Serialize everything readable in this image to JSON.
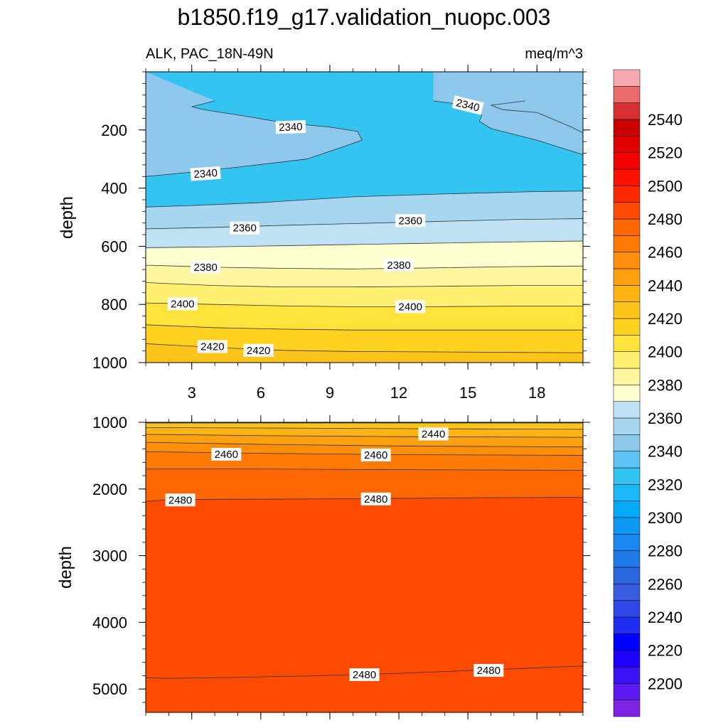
{
  "chart_data": {
    "type": "heatmap",
    "title": "b1850.f19_g17.validation_nuopc.003",
    "subtitle_left": "ALK, PAC_18N-49N",
    "subtitle_right": "meq/m^3",
    "panels": [
      {
        "name": "upper",
        "ylabel": "depth",
        "ylim": [
          1000,
          0
        ],
        "yticks": [
          200,
          400,
          600,
          800,
          1000
        ],
        "xlim": [
          1,
          20
        ],
        "xticks": [
          3,
          6,
          9,
          12,
          15,
          18
        ],
        "contour_levels": [
          2330,
          2340,
          2350,
          2360,
          2370,
          2380,
          2390,
          2400,
          2410,
          2420
        ],
        "isolines": [
          {
            "level": 2340,
            "points": [
              [
                1,
                360
              ],
              [
                3,
                345
              ],
              [
                5,
                328
              ],
              [
                8,
                300
              ],
              [
                9.5,
                260
              ],
              [
                10.4,
                235
              ],
              [
                10.2,
                205
              ],
              [
                9,
                190
              ],
              [
                7,
                175
              ],
              [
                5.5,
                155
              ],
              [
                3.5,
                130
              ],
              [
                3,
                120
              ],
              [
                4,
                100
              ]
            ]
          },
          {
            "level": 2340,
            "points": [
              [
                13.5,
                100
              ],
              [
                15,
                115
              ],
              [
                15.3,
                120
              ],
              [
                15.6,
                150
              ],
              [
                15.5,
                170
              ],
              [
                16,
                195
              ],
              [
                18,
                235
              ],
              [
                20,
                285
              ]
            ]
          },
          {
            "level": 2340,
            "points": [
              [
                20,
                210
              ],
              [
                19.5,
                190
              ],
              [
                18,
                140
              ],
              [
                16.5,
                130
              ],
              [
                16,
                115
              ],
              [
                17.5,
                100
              ]
            ]
          },
          {
            "level": 2350,
            "points": [
              [
                1,
                465
              ],
              [
                3,
                460
              ],
              [
                6,
                450
              ],
              [
                10,
                430
              ],
              [
                14,
                420
              ],
              [
                18,
                412
              ],
              [
                20,
                410
              ]
            ]
          },
          {
            "level": 2360,
            "points": [
              [
                1,
                540
              ],
              [
                4,
                535
              ],
              [
                7,
                528
              ],
              [
                10,
                522
              ],
              [
                13,
                516
              ],
              [
                17,
                508
              ],
              [
                20,
                505
              ]
            ]
          },
          {
            "level": 2370,
            "points": [
              [
                1,
                605
              ],
              [
                4,
                602
              ],
              [
                7,
                598
              ],
              [
                10,
                594
              ],
              [
                13,
                590
              ],
              [
                17,
                585
              ],
              [
                20,
                582
              ]
            ]
          },
          {
            "level": 2380,
            "points": [
              [
                1,
                665
              ],
              [
                4,
                672
              ],
              [
                7,
                676
              ],
              [
                10,
                678
              ],
              [
                13,
                675
              ],
              [
                17,
                670
              ],
              [
                20,
                668
              ]
            ]
          },
          {
            "level": 2390,
            "points": [
              [
                1,
                725
              ],
              [
                4,
                735
              ],
              [
                7,
                740
              ],
              [
                10,
                740
              ],
              [
                13,
                738
              ],
              [
                17,
                735
              ],
              [
                20,
                735
              ]
            ]
          },
          {
            "level": 2400,
            "points": [
              [
                1,
                795
              ],
              [
                4,
                800
              ],
              [
                7,
                805
              ],
              [
                10,
                808
              ],
              [
                13,
                808
              ],
              [
                17,
                806
              ],
              [
                20,
                806
              ]
            ]
          },
          {
            "level": 2410,
            "points": [
              [
                1,
                870
              ],
              [
                4,
                880
              ],
              [
                7,
                885
              ],
              [
                10,
                888
              ],
              [
                13,
                888
              ],
              [
                17,
                888
              ],
              [
                20,
                888
              ]
            ]
          },
          {
            "level": 2420,
            "points": [
              [
                1,
                935
              ],
              [
                4,
                948
              ],
              [
                7,
                958
              ],
              [
                10,
                962
              ],
              [
                13,
                963
              ],
              [
                17,
                965
              ],
              [
                20,
                966
              ]
            ]
          }
        ],
        "labels": [
          {
            "text": "2340",
            "x": 15.0,
            "y": 115,
            "rotate": 14
          },
          {
            "text": "2340",
            "x": 7.3,
            "y": 190,
            "rotate": -2
          },
          {
            "text": "2340",
            "x": 3.6,
            "y": 350,
            "rotate": -4
          },
          {
            "text": "2360",
            "x": 5.3,
            "y": 537,
            "rotate": 0
          },
          {
            "text": "2360",
            "x": 12.5,
            "y": 512,
            "rotate": 0
          },
          {
            "text": "2380",
            "x": 3.6,
            "y": 672,
            "rotate": 0
          },
          {
            "text": "2380",
            "x": 12.0,
            "y": 665,
            "rotate": 0
          },
          {
            "text": "2400",
            "x": 2.6,
            "y": 798,
            "rotate": 0
          },
          {
            "text": "2400",
            "x": 12.5,
            "y": 808,
            "rotate": 0
          },
          {
            "text": "2420",
            "x": 3.9,
            "y": 945,
            "rotate": 0
          },
          {
            "text": "2420",
            "x": 5.9,
            "y": 958,
            "rotate": 0
          }
        ]
      },
      {
        "name": "lower",
        "ylabel": "depth",
        "ylim": [
          5350,
          1000
        ],
        "yticks": [
          1000,
          2000,
          3000,
          4000,
          5000
        ],
        "xlim": [
          1,
          20
        ],
        "xticks": [
          3,
          6,
          9,
          12,
          15,
          18
        ],
        "contour_levels": [
          2420,
          2430,
          2440,
          2450,
          2460,
          2470,
          2480
        ],
        "isolines": [
          {
            "level": 2420,
            "points": [
              [
                1,
                1010
              ],
              [
                20,
                1010
              ]
            ]
          },
          {
            "level": 2430,
            "points": [
              [
                1,
                1080
              ],
              [
                6,
                1085
              ],
              [
                12,
                1095
              ],
              [
                20,
                1105
              ]
            ]
          },
          {
            "level": 2440,
            "points": [
              [
                1,
                1180
              ],
              [
                6,
                1200
              ],
              [
                12,
                1215
              ],
              [
                20,
                1225
              ]
            ]
          },
          {
            "level": 2450,
            "points": [
              [
                1,
                1300
              ],
              [
                6,
                1330
              ],
              [
                12,
                1355
              ],
              [
                20,
                1370
              ]
            ]
          },
          {
            "level": 2460,
            "points": [
              [
                1,
                1440
              ],
              [
                6,
                1465
              ],
              [
                12,
                1485
              ],
              [
                20,
                1495
              ]
            ]
          },
          {
            "level": 2470,
            "points": [
              [
                1,
                1700
              ],
              [
                6,
                1700
              ],
              [
                12,
                1710
              ],
              [
                20,
                1720
              ]
            ]
          },
          {
            "level": 2480,
            "points": [
              [
                1,
                2185
              ],
              [
                2,
                2160
              ],
              [
                4,
                2155
              ],
              [
                8,
                2150
              ],
              [
                12,
                2140
              ],
              [
                16,
                2130
              ],
              [
                20,
                2125
              ]
            ]
          },
          {
            "level": 2480,
            "points": [
              [
                1,
                4830
              ],
              [
                2,
                4840
              ],
              [
                4,
                4830
              ],
              [
                8,
                4805
              ],
              [
                12,
                4765
              ],
              [
                16,
                4710
              ],
              [
                20,
                4655
              ]
            ]
          }
        ],
        "labels": [
          {
            "text": "2440",
            "x": 13.5,
            "y": 1175,
            "rotate": 0
          },
          {
            "text": "2460",
            "x": 4.5,
            "y": 1480,
            "rotate": 0
          },
          {
            "text": "2460",
            "x": 11.0,
            "y": 1490,
            "rotate": 0
          },
          {
            "text": "2480",
            "x": 2.5,
            "y": 2165,
            "rotate": 0
          },
          {
            "text": "2480",
            "x": 11.0,
            "y": 2150,
            "rotate": 0
          },
          {
            "text": "2480",
            "x": 10.5,
            "y": 4785,
            "rotate": 0
          },
          {
            "text": "2480",
            "x": 15.9,
            "y": 4720,
            "rotate": 0
          }
        ]
      }
    ],
    "colorbar": {
      "levels": [
        2190,
        2200,
        2210,
        2220,
        2230,
        2240,
        2250,
        2260,
        2270,
        2280,
        2290,
        2300,
        2310,
        2320,
        2330,
        2340,
        2350,
        2360,
        2370,
        2380,
        2390,
        2400,
        2410,
        2420,
        2430,
        2440,
        2450,
        2460,
        2470,
        2480,
        2490,
        2500,
        2510,
        2520,
        2530,
        2540,
        2550,
        2560
      ],
      "tick_labels": [
        "2200",
        "2220",
        "2240",
        "2260",
        "2280",
        "2300",
        "2320",
        "2340",
        "2360",
        "2380",
        "2400",
        "2420",
        "2440",
        "2460",
        "2480",
        "2500",
        "2520",
        "2540"
      ],
      "colors": [
        "#7e22e6",
        "#5c1af0",
        "#3a12f6",
        "#1e00ff",
        "#0000ff",
        "#1f2ef0",
        "#2e46e8",
        "#3a5ae0",
        "#2a66e0",
        "#1f7ae8",
        "#1688f0",
        "#0e98f6",
        "#00aafa",
        "#1ab8f6",
        "#34c4f2",
        "#5ec2f4",
        "#8ec8ec",
        "#a6d6f0",
        "#bde2f4",
        "#ffffd0",
        "#fff7a0",
        "#fff070",
        "#ffe23a",
        "#ffd220",
        "#ffc41a",
        "#ffb414",
        "#ffa010",
        "#ff8e0a",
        "#ff7a06",
        "#ff6604",
        "#ff4a02",
        "#ff2a00",
        "#ff1000",
        "#f20000",
        "#e00000",
        "#cc0000",
        "#d83030",
        "#e86a6a",
        "#f8aab0"
      ]
    }
  }
}
